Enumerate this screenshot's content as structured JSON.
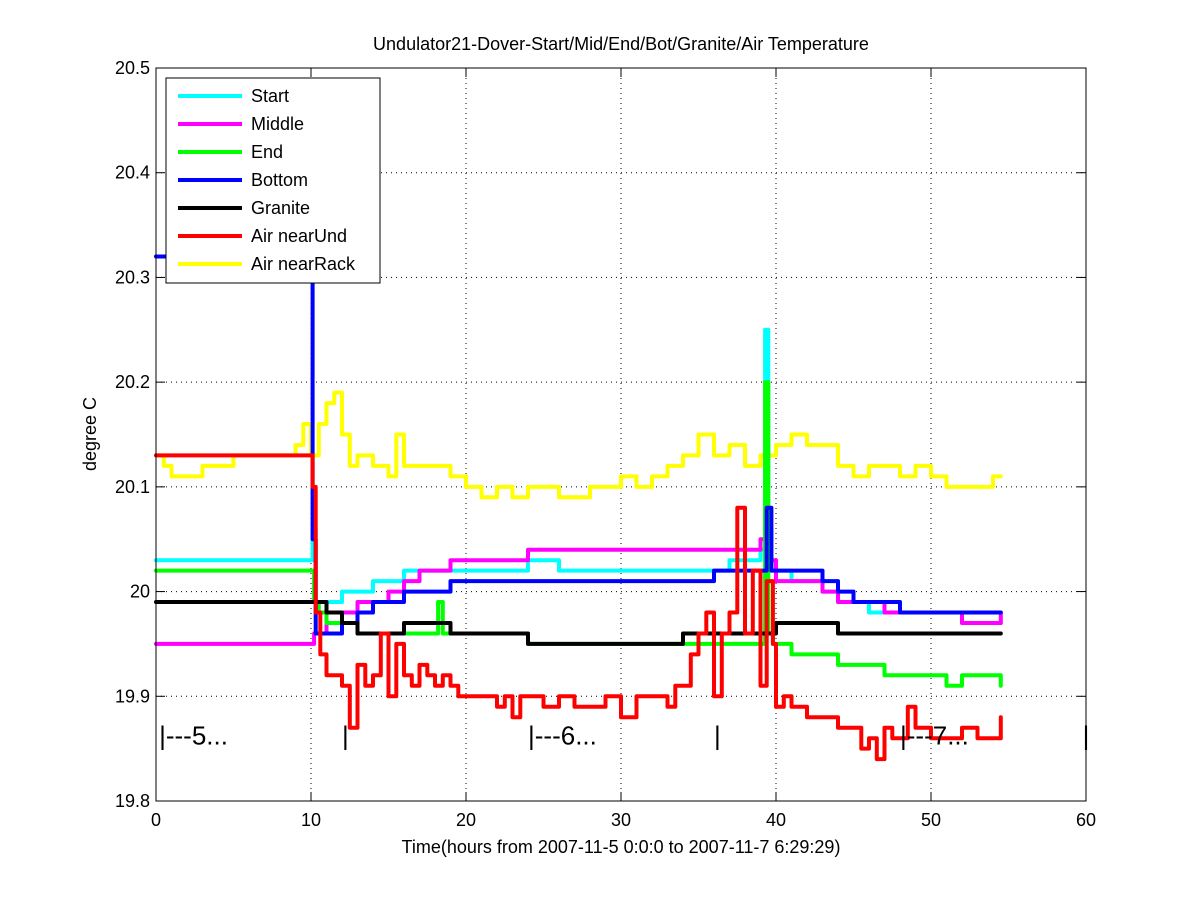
{
  "chart_data": {
    "type": "line",
    "title": "Undulator21-Dover-Start/Mid/End/Bot/Granite/Air Temperature",
    "xlabel": "Time(hours from 2007-11-5 0:0:0 to 2007-11-7 6:29:29)",
    "ylabel": "degree C",
    "xlim": [
      0,
      60
    ],
    "ylim": [
      19.8,
      20.5
    ],
    "x_ticks": [
      0,
      10,
      20,
      30,
      40,
      50,
      60
    ],
    "x_tick_labels": [
      "0",
      "10",
      "20",
      "30",
      "40",
      "50",
      "60"
    ],
    "y_ticks": [
      19.8,
      19.9,
      20,
      20.1,
      20.2,
      20.3,
      20.4,
      20.5
    ],
    "y_tick_labels": [
      "19.8",
      "19.9",
      "20",
      "20.1",
      "20.2",
      "20.3",
      "20.4",
      "20.5"
    ],
    "grid": true,
    "legend_position": "top-left",
    "annotations": [
      {
        "text": "|---5...",
        "x": 0.2,
        "y": 19.854
      },
      {
        "text": "|",
        "x": 12.0,
        "y": 19.854
      },
      {
        "text": "|---6...",
        "x": 24.0,
        "y": 19.854
      },
      {
        "text": "|",
        "x": 36.0,
        "y": 19.854
      },
      {
        "text": "|---7...",
        "x": 48.0,
        "y": 19.854
      },
      {
        "text": "|",
        "x": 60.0,
        "y": 19.854
      }
    ],
    "series": [
      {
        "name": "Start",
        "color": "#00ffff",
        "x": [
          0,
          10,
          10.1,
          10.3,
          11,
          12,
          13,
          14,
          15,
          16,
          17,
          20,
          23,
          24,
          26,
          28,
          30,
          33,
          35,
          37,
          38,
          39,
          39.3,
          39.5,
          39.7,
          40,
          41,
          42,
          43,
          44,
          45,
          46,
          47,
          48,
          50,
          52,
          53.5,
          54.5
        ],
        "y": [
          20.03,
          20.03,
          20.06,
          19.99,
          19.99,
          20.0,
          20.0,
          20.01,
          20.01,
          20.02,
          20.02,
          20.02,
          20.02,
          20.03,
          20.02,
          20.02,
          20.02,
          20.02,
          20.02,
          20.03,
          20.03,
          20.04,
          20.25,
          20.06,
          20.02,
          20.02,
          20.01,
          20.01,
          20.0,
          19.99,
          19.99,
          19.98,
          19.98,
          19.98,
          19.98,
          19.97,
          19.97,
          19.97
        ]
      },
      {
        "name": "Middle",
        "color": "#ff00ff",
        "x": [
          0,
          10,
          10.2,
          10.5,
          11,
          12,
          13,
          14,
          15,
          16,
          17,
          18,
          19,
          20,
          23,
          24,
          26,
          28,
          30,
          33,
          35,
          38,
          39,
          39.5,
          40,
          41,
          42,
          43,
          44,
          45,
          46,
          47,
          48,
          50,
          52,
          54.5
        ],
        "y": [
          19.95,
          19.95,
          19.96,
          19.96,
          19.97,
          19.98,
          19.99,
          19.99,
          20.0,
          20.01,
          20.02,
          20.02,
          20.03,
          20.03,
          20.03,
          20.04,
          20.04,
          20.04,
          20.04,
          20.04,
          20.04,
          20.04,
          20.05,
          20.03,
          20.01,
          20.01,
          20.01,
          20.0,
          19.99,
          19.99,
          19.99,
          19.98,
          19.98,
          19.98,
          19.97,
          19.98
        ]
      },
      {
        "name": "End",
        "color": "#00ff00",
        "x": [
          0,
          10,
          10.2,
          10.5,
          11,
          12,
          13,
          15,
          17,
          18,
          18.2,
          18.5,
          20,
          24,
          28,
          32,
          35,
          36,
          38,
          39,
          39.3,
          39.5,
          39.8,
          40,
          41,
          42,
          43,
          44,
          45,
          46,
          47,
          48,
          49,
          50,
          51,
          52,
          53,
          54.5
        ],
        "y": [
          20.02,
          20.02,
          19.99,
          19.98,
          19.97,
          19.97,
          19.96,
          19.96,
          19.96,
          19.96,
          19.99,
          19.96,
          19.96,
          19.95,
          19.95,
          19.95,
          19.95,
          19.95,
          19.95,
          19.95,
          20.2,
          19.96,
          19.95,
          19.95,
          19.94,
          19.94,
          19.94,
          19.93,
          19.93,
          19.93,
          19.92,
          19.92,
          19.92,
          19.92,
          19.91,
          19.92,
          19.92,
          19.91
        ]
      },
      {
        "name": "Bottom",
        "color": "#0000ff",
        "x": [
          0,
          9.8,
          10,
          10.1,
          10.3,
          10.5,
          11,
          12,
          13,
          14,
          15,
          16,
          17,
          18,
          19,
          20,
          24,
          28,
          32,
          35,
          36,
          38,
          39,
          39.4,
          39.7,
          40,
          42,
          43,
          44,
          45,
          46,
          47,
          48,
          49,
          50,
          52,
          54.5
        ],
        "y": [
          20.32,
          20.32,
          20.31,
          20.05,
          19.96,
          19.96,
          19.96,
          19.97,
          19.98,
          19.99,
          19.99,
          20.0,
          20.0,
          20.0,
          20.01,
          20.01,
          20.01,
          20.01,
          20.01,
          20.01,
          20.02,
          20.02,
          20.02,
          20.08,
          20.02,
          20.02,
          20.02,
          20.01,
          20.0,
          19.99,
          19.99,
          19.99,
          19.98,
          19.98,
          19.98,
          19.98,
          19.98
        ]
      },
      {
        "name": "Granite",
        "color": "#000000",
        "x": [
          0,
          10,
          10.3,
          11,
          12,
          13,
          14,
          15,
          16,
          17,
          18,
          19,
          20,
          22,
          24,
          26,
          28,
          30,
          32,
          33,
          34,
          35,
          36,
          37,
          38,
          39,
          40,
          41,
          42,
          43,
          44,
          45,
          46,
          47,
          48,
          50,
          52,
          54.5
        ],
        "y": [
          19.99,
          19.99,
          19.99,
          19.98,
          19.97,
          19.96,
          19.96,
          19.96,
          19.97,
          19.97,
          19.97,
          19.96,
          19.96,
          19.96,
          19.95,
          19.95,
          19.95,
          19.95,
          19.95,
          19.95,
          19.96,
          19.96,
          19.96,
          19.96,
          19.96,
          19.96,
          19.97,
          19.97,
          19.97,
          19.97,
          19.96,
          19.96,
          19.96,
          19.96,
          19.96,
          19.96,
          19.96,
          19.96
        ]
      },
      {
        "name": "Air nearUnd",
        "color": "#ff0000",
        "x": [
          0,
          10,
          10.1,
          10.3,
          10.6,
          11,
          11.5,
          12,
          12.5,
          13,
          13.5,
          14,
          14.5,
          15,
          15.5,
          16,
          16.5,
          17,
          17.5,
          18,
          18.5,
          19,
          19.5,
          20,
          21,
          22,
          22.5,
          23,
          23.5,
          24,
          25,
          26,
          27,
          28,
          29,
          30,
          31,
          32,
          33,
          33.5,
          34,
          34.5,
          35,
          35.5,
          36,
          36.5,
          37,
          37.5,
          38,
          38.5,
          39,
          39.4,
          39.8,
          40,
          40.5,
          41,
          42,
          43,
          44,
          45,
          45.5,
          46,
          46.5,
          47,
          47.5,
          48,
          48.5,
          49,
          50,
          51,
          52,
          53,
          54,
          54.5
        ],
        "y": [
          20.13,
          20.13,
          20.1,
          19.98,
          19.94,
          19.92,
          19.92,
          19.91,
          19.87,
          19.93,
          19.91,
          19.92,
          19.96,
          19.9,
          19.95,
          19.92,
          19.91,
          19.93,
          19.92,
          19.91,
          19.92,
          19.91,
          19.9,
          19.9,
          19.9,
          19.89,
          19.9,
          19.88,
          19.9,
          19.9,
          19.89,
          19.9,
          19.89,
          19.89,
          19.9,
          19.88,
          19.9,
          19.9,
          19.89,
          19.91,
          19.91,
          19.94,
          19.96,
          19.98,
          19.9,
          19.96,
          19.98,
          20.08,
          19.96,
          20.02,
          19.91,
          20.01,
          19.95,
          19.89,
          19.9,
          19.89,
          19.88,
          19.88,
          19.87,
          19.87,
          19.85,
          19.86,
          19.84,
          19.87,
          19.86,
          19.86,
          19.89,
          19.87,
          19.86,
          19.86,
          19.87,
          19.86,
          19.86,
          19.88
        ]
      },
      {
        "name": "Air nearRack",
        "color": "#ffff00",
        "x": [
          0,
          0.5,
          1,
          2,
          3,
          4,
          5,
          6,
          7,
          8,
          9,
          9.5,
          10,
          10.5,
          11,
          11.5,
          12,
          12.5,
          13,
          14,
          15,
          15.5,
          16,
          17,
          18,
          19,
          20,
          21,
          22,
          23,
          24,
          25,
          26,
          27,
          28,
          29,
          30,
          31,
          32,
          33,
          34,
          35,
          36,
          37,
          38,
          39,
          40,
          41,
          42,
          43,
          44,
          45,
          46,
          47,
          48,
          49,
          50,
          51,
          52,
          53,
          54,
          54.5
        ],
        "y": [
          20.13,
          20.12,
          20.11,
          20.11,
          20.12,
          20.12,
          20.13,
          20.13,
          20.13,
          20.13,
          20.14,
          20.16,
          20.13,
          20.16,
          20.18,
          20.19,
          20.15,
          20.12,
          20.13,
          20.12,
          20.11,
          20.15,
          20.12,
          20.12,
          20.12,
          20.11,
          20.1,
          20.09,
          20.1,
          20.09,
          20.1,
          20.1,
          20.09,
          20.09,
          20.1,
          20.1,
          20.11,
          20.1,
          20.11,
          20.12,
          20.13,
          20.15,
          20.13,
          20.14,
          20.12,
          20.13,
          20.14,
          20.15,
          20.14,
          20.14,
          20.12,
          20.11,
          20.12,
          20.12,
          20.11,
          20.12,
          20.11,
          20.1,
          20.1,
          20.1,
          20.11,
          20.11
        ]
      }
    ]
  }
}
